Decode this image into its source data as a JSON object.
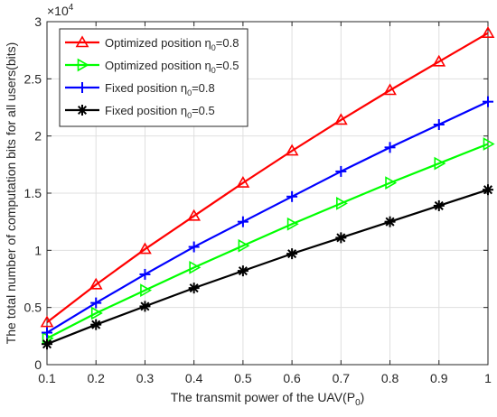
{
  "chart_data": {
    "type": "line",
    "xlabel": "The transmit power of the UAV(P",
    "xlabel_sub": "0",
    "xlabel_tail": ")",
    "ylabel": "The total number of computation bits for all users(bits)",
    "exponent_base": "×10",
    "exponent_power": "4",
    "x": [
      0.1,
      0.2,
      0.3,
      0.4,
      0.5,
      0.6,
      0.7,
      0.8,
      0.9,
      1.0
    ],
    "xlim": [
      0.1,
      1.0
    ],
    "ylim": [
      0,
      30000
    ],
    "xticks": [
      "0.1",
      "0.2",
      "0.3",
      "0.4",
      "0.5",
      "0.6",
      "0.7",
      "0.8",
      "0.9",
      "1"
    ],
    "yticks": [
      {
        "v": 0,
        "label": "0"
      },
      {
        "v": 5000,
        "label": "0.5"
      },
      {
        "v": 10000,
        "label": "1"
      },
      {
        "v": 15000,
        "label": "1.5"
      },
      {
        "v": 20000,
        "label": "2"
      },
      {
        "v": 25000,
        "label": "2.5"
      },
      {
        "v": 30000,
        "label": "3"
      }
    ],
    "grid": true,
    "legend_position": "top-left",
    "series": [
      {
        "name": "Optimized position η",
        "sub": "0",
        "suffix": "=0.8",
        "color": "#ff0000",
        "marker": "triangle-up",
        "values": [
          3700,
          7000,
          10100,
          13000,
          15900,
          18700,
          21400,
          24000,
          26500,
          29000
        ]
      },
      {
        "name": "Optimized position η",
        "sub": "0",
        "suffix": "=0.5",
        "color": "#00ff00",
        "marker": "triangle-right",
        "values": [
          2300,
          4500,
          6500,
          8500,
          10400,
          12300,
          14100,
          15900,
          17600,
          19300
        ]
      },
      {
        "name": "Fixed position η",
        "sub": "0",
        "suffix": "=0.8",
        "color": "#0000ff",
        "marker": "plus",
        "values": [
          2800,
          5400,
          7900,
          10300,
          12500,
          14700,
          16900,
          19000,
          21000,
          23000
        ]
      },
      {
        "name": "Fixed position η",
        "sub": "0",
        "suffix": "=0.5",
        "color": "#000000",
        "marker": "asterisk",
        "values": [
          1800,
          3500,
          5100,
          6700,
          8200,
          9700,
          11100,
          12500,
          13900,
          15300
        ]
      }
    ]
  }
}
